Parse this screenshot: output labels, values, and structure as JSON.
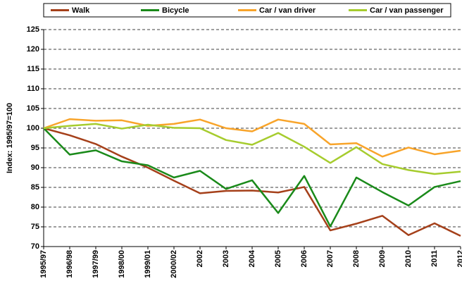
{
  "chart_data": {
    "type": "line",
    "y_label": "Index: 1995/97=100",
    "categories": [
      "1995/97",
      "1996/98",
      "1997/99",
      "1998/00",
      "1999/01",
      "2000/02",
      "2002",
      "2003",
      "2004",
      "2005",
      "2006",
      "2007",
      "2008",
      "2009",
      "2010",
      "2011",
      "2012"
    ],
    "series": [
      {
        "name": "Walk",
        "color": "#a5401a",
        "values": [
          100,
          98.2,
          96,
          92.8,
          90,
          86.7,
          83.5,
          84.1,
          84.2,
          83.7,
          85.1,
          74.1,
          75.8,
          77.8,
          72.9,
          75.9,
          72.7
        ]
      },
      {
        "name": "Bicycle",
        "color": "#1a8a1a",
        "values": [
          100,
          93.3,
          94.4,
          91.6,
          90.6,
          87.5,
          89.2,
          84.6,
          86.8,
          78.5,
          87.9,
          75.1,
          87.5,
          83.8,
          80.4,
          85.1,
          86.6
        ]
      },
      {
        "name": "Car / van driver",
        "color": "#f8a42a",
        "values": [
          100,
          102.3,
          101.9,
          102,
          100.6,
          101.1,
          102.2,
          100,
          99.2,
          102.2,
          101.1,
          95.9,
          96.2,
          92.8,
          95.1,
          93.4,
          94.3
        ]
      },
      {
        "name": "Car / van passenger",
        "color": "#a6cc2e",
        "values": [
          100,
          100.6,
          101.1,
          99.9,
          100.9,
          100.1,
          100,
          97,
          95.8,
          98.8,
          95.3,
          91.2,
          95.2,
          90.9,
          89.4,
          88.4,
          89
        ]
      }
    ],
    "ylim": [
      70,
      125
    ],
    "yticks": [
      70,
      75,
      80,
      85,
      90,
      95,
      100,
      105,
      110,
      115,
      120,
      125
    ],
    "grid": true,
    "legend": "top"
  }
}
